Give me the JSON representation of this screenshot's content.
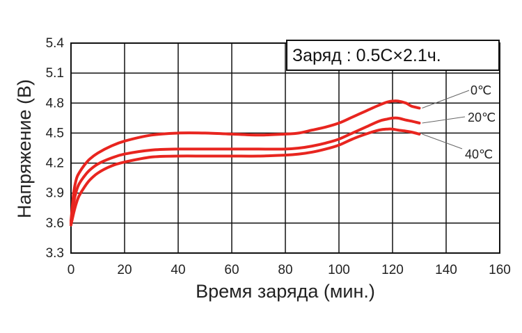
{
  "chart_data": {
    "type": "line",
    "title": "",
    "annotation": "Заряд : 0.5C×2.1ч.",
    "xlabel": "Время заряда (мин.)",
    "ylabel": "Напряжение (В)",
    "xlim": [
      0,
      160
    ],
    "ylim": [
      3.3,
      5.4
    ],
    "x_ticks": [
      "0",
      "20",
      "40",
      "60",
      "80",
      "100",
      "120",
      "140",
      "160"
    ],
    "y_ticks": [
      "5.4",
      "5.1",
      "4.8",
      "4.5",
      "4.2",
      "3.9",
      "3.6",
      "3.3"
    ],
    "grid": true,
    "line_color": "#e8251f",
    "series": [
      {
        "name": "0℃",
        "x": [
          0,
          1,
          2,
          3,
          5,
          7,
          10,
          15,
          20,
          30,
          40,
          50,
          60,
          70,
          80,
          85,
          90,
          95,
          100,
          105,
          110,
          115,
          118,
          120,
          122,
          125,
          127,
          130
        ],
        "y": [
          3.62,
          3.9,
          4.04,
          4.1,
          4.18,
          4.24,
          4.3,
          4.37,
          4.42,
          4.48,
          4.5,
          4.5,
          4.49,
          4.48,
          4.49,
          4.5,
          4.53,
          4.56,
          4.6,
          4.66,
          4.72,
          4.78,
          4.81,
          4.82,
          4.82,
          4.8,
          4.77,
          4.75
        ]
      },
      {
        "name": "20℃",
        "x": [
          0,
          1,
          2,
          3,
          5,
          7,
          10,
          15,
          20,
          30,
          40,
          50,
          60,
          70,
          80,
          85,
          90,
          95,
          100,
          105,
          110,
          115,
          118,
          120,
          122,
          125,
          127,
          130
        ],
        "y": [
          3.6,
          3.8,
          3.92,
          3.99,
          4.07,
          4.13,
          4.19,
          4.25,
          4.29,
          4.33,
          4.34,
          4.34,
          4.34,
          4.34,
          4.34,
          4.35,
          4.37,
          4.4,
          4.44,
          4.5,
          4.56,
          4.62,
          4.64,
          4.65,
          4.65,
          4.63,
          4.62,
          4.6
        ]
      },
      {
        "name": "40℃",
        "x": [
          0,
          1,
          2,
          3,
          5,
          7,
          10,
          15,
          20,
          30,
          40,
          50,
          60,
          70,
          80,
          85,
          90,
          95,
          100,
          105,
          110,
          115,
          118,
          120,
          122,
          125,
          127,
          130
        ],
        "y": [
          3.58,
          3.7,
          3.8,
          3.87,
          3.96,
          4.03,
          4.1,
          4.17,
          4.21,
          4.26,
          4.27,
          4.27,
          4.27,
          4.27,
          4.28,
          4.29,
          4.31,
          4.34,
          4.38,
          4.44,
          4.49,
          4.53,
          4.54,
          4.54,
          4.53,
          4.52,
          4.51,
          4.49
        ]
      }
    ]
  }
}
